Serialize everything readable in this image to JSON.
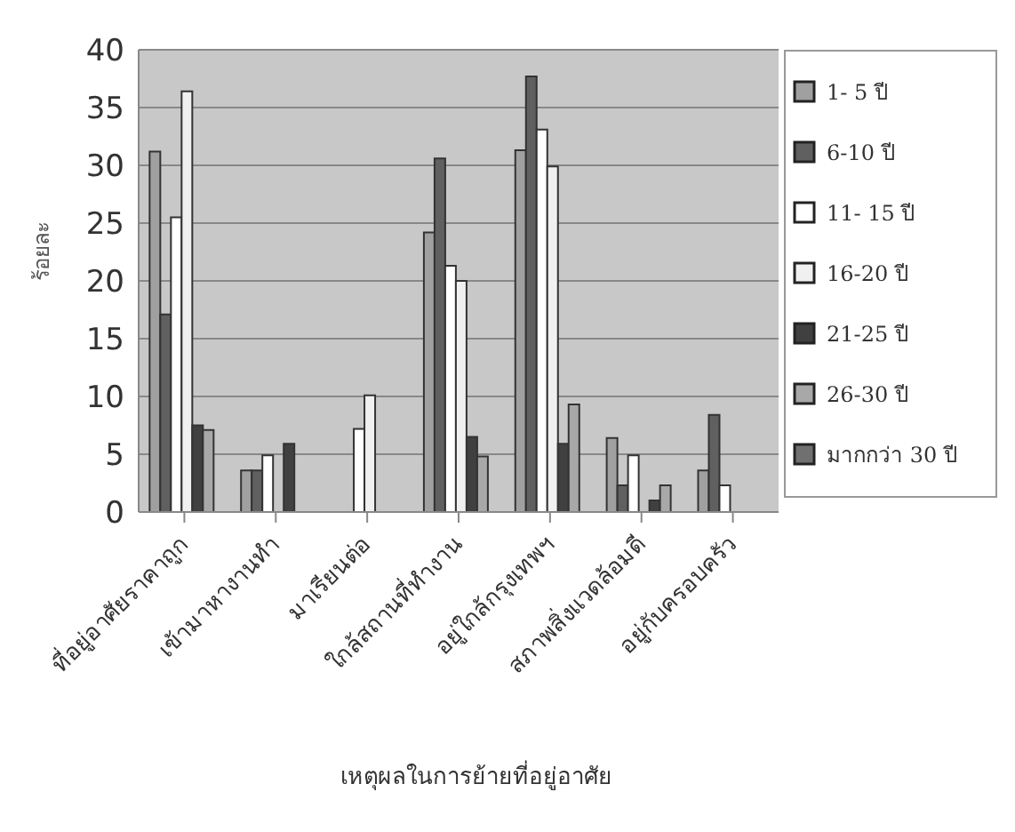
{
  "chart_data": {
    "type": "bar",
    "xlabel": "เหตุผลในการย้ายที่อยู่อาศัย",
    "ylabel": "ร้อยละ",
    "categories": [
      "ที่อยู่อาศัยราคาถูก",
      "เข้ามาหางานทำ",
      "มาเรียนต่อ",
      "ใกล้สถานที่ทำงาน",
      "อยู่ใกล้กรุงเทพฯ",
      "สภาพสิ่งแวดล้อมดี",
      "อยู่กับครอบครัว"
    ],
    "series": [
      {
        "name": "1- 5 ปี",
        "color": "#a0a0a0",
        "values": [
          31.2,
          3.6,
          null,
          24.2,
          31.3,
          6.4,
          3.6
        ]
      },
      {
        "name": "6-10 ปี",
        "color": "#606060",
        "values": [
          17.1,
          3.6,
          null,
          30.6,
          37.7,
          2.3,
          8.4
        ]
      },
      {
        "name": "11- 15 ปี",
        "color": "#ffffff",
        "values": [
          25.5,
          4.9,
          7.2,
          21.3,
          33.1,
          4.9,
          2.3
        ]
      },
      {
        "name": "16-20 ปี",
        "color": "#f0f0f0",
        "values": [
          36.4,
          null,
          10.1,
          20,
          29.9,
          null,
          null
        ]
      },
      {
        "name": "21-25 ปี",
        "color": "#404040",
        "values": [
          7.5,
          5.9,
          null,
          6.5,
          5.9,
          1,
          null
        ]
      },
      {
        "name": "26-30 ปี",
        "color": "#a8a8a8",
        "values": [
          7.1,
          null,
          null,
          4.8,
          9.3,
          2.3,
          null
        ]
      },
      {
        "name": "มากกว่า 30 ปี",
        "color": "#707070",
        "values": [
          null,
          null,
          null,
          null,
          null,
          null,
          null
        ]
      }
    ],
    "ylim": [
      0,
      40
    ],
    "yticks": [
      0,
      5,
      10,
      15,
      20,
      25,
      30,
      35,
      40
    ],
    "grid": "y",
    "legend": "right"
  }
}
